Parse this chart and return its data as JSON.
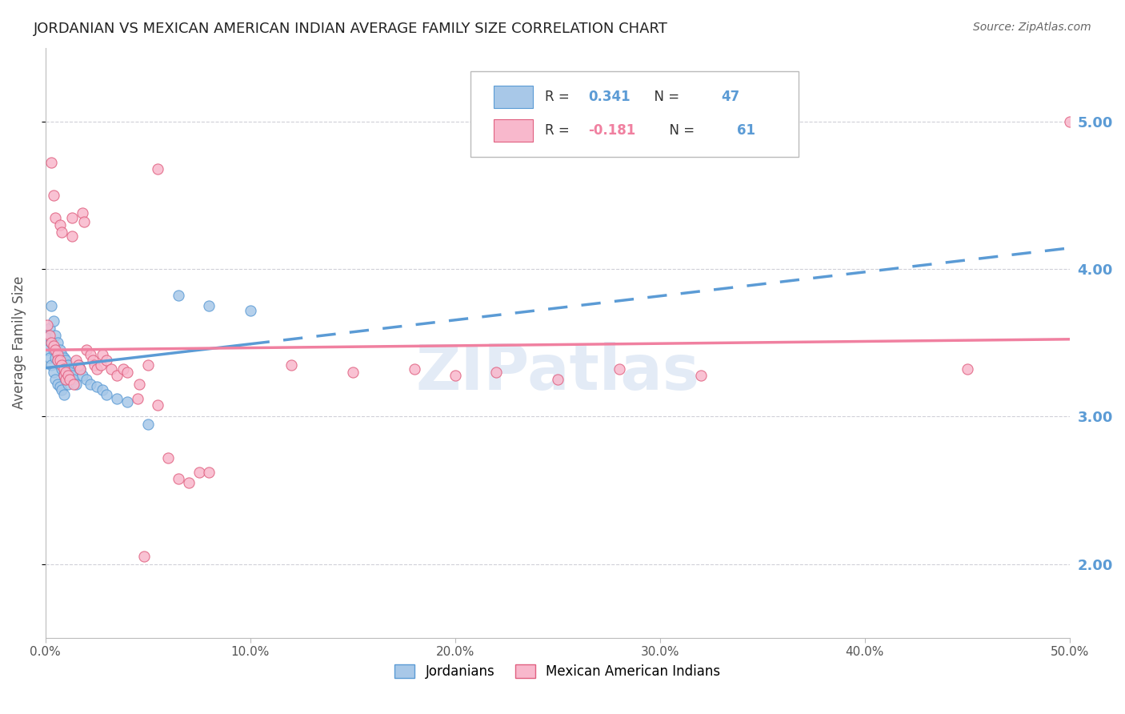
{
  "title": "JORDANIAN VS MEXICAN AMERICAN INDIAN AVERAGE FAMILY SIZE CORRELATION CHART",
  "source": "Source: ZipAtlas.com",
  "ylabel": "Average Family Size",
  "right_yticks": [
    2.0,
    3.0,
    4.0,
    5.0
  ],
  "watermark": "ZIPatlas",
  "R_blue": 0.341,
  "N_blue": 47,
  "R_pink": -0.181,
  "N_pink": 61,
  "legend_label_1": "Jordanians",
  "legend_label_2": "Mexican American Indians",
  "blue_points": [
    [
      0.001,
      3.55
    ],
    [
      0.001,
      3.45
    ],
    [
      0.002,
      3.6
    ],
    [
      0.002,
      3.4
    ],
    [
      0.003,
      3.75
    ],
    [
      0.003,
      3.5
    ],
    [
      0.003,
      3.35
    ],
    [
      0.004,
      3.65
    ],
    [
      0.004,
      3.45
    ],
    [
      0.004,
      3.3
    ],
    [
      0.005,
      3.55
    ],
    [
      0.005,
      3.4
    ],
    [
      0.005,
      3.25
    ],
    [
      0.006,
      3.5
    ],
    [
      0.006,
      3.38
    ],
    [
      0.006,
      3.22
    ],
    [
      0.007,
      3.45
    ],
    [
      0.007,
      3.35
    ],
    [
      0.007,
      3.2
    ],
    [
      0.008,
      3.42
    ],
    [
      0.008,
      3.32
    ],
    [
      0.008,
      3.18
    ],
    [
      0.009,
      3.4
    ],
    [
      0.009,
      3.28
    ],
    [
      0.009,
      3.15
    ],
    [
      0.01,
      3.38
    ],
    [
      0.01,
      3.25
    ],
    [
      0.011,
      3.35
    ],
    [
      0.011,
      3.22
    ],
    [
      0.012,
      3.3
    ],
    [
      0.013,
      3.28
    ],
    [
      0.014,
      3.25
    ],
    [
      0.015,
      3.22
    ],
    [
      0.016,
      3.35
    ],
    [
      0.017,
      3.32
    ],
    [
      0.018,
      3.28
    ],
    [
      0.02,
      3.25
    ],
    [
      0.022,
      3.22
    ],
    [
      0.025,
      3.2
    ],
    [
      0.028,
      3.18
    ],
    [
      0.03,
      3.15
    ],
    [
      0.035,
      3.12
    ],
    [
      0.04,
      3.1
    ],
    [
      0.05,
      2.95
    ],
    [
      0.065,
      3.82
    ],
    [
      0.08,
      3.75
    ],
    [
      0.1,
      3.72
    ]
  ],
  "pink_points": [
    [
      0.001,
      3.62
    ],
    [
      0.002,
      3.55
    ],
    [
      0.003,
      3.5
    ],
    [
      0.003,
      4.72
    ],
    [
      0.004,
      3.48
    ],
    [
      0.004,
      4.5
    ],
    [
      0.005,
      3.45
    ],
    [
      0.005,
      4.35
    ],
    [
      0.006,
      3.42
    ],
    [
      0.006,
      3.38
    ],
    [
      0.007,
      3.38
    ],
    [
      0.007,
      4.3
    ],
    [
      0.008,
      3.35
    ],
    [
      0.008,
      4.25
    ],
    [
      0.009,
      3.32
    ],
    [
      0.009,
      3.28
    ],
    [
      0.01,
      3.3
    ],
    [
      0.01,
      3.25
    ],
    [
      0.011,
      3.28
    ],
    [
      0.012,
      3.25
    ],
    [
      0.013,
      4.35
    ],
    [
      0.013,
      4.22
    ],
    [
      0.014,
      3.22
    ],
    [
      0.015,
      3.38
    ],
    [
      0.016,
      3.35
    ],
    [
      0.017,
      3.32
    ],
    [
      0.018,
      4.38
    ],
    [
      0.019,
      4.32
    ],
    [
      0.02,
      3.45
    ],
    [
      0.022,
      3.42
    ],
    [
      0.023,
      3.38
    ],
    [
      0.024,
      3.35
    ],
    [
      0.025,
      3.32
    ],
    [
      0.027,
      3.35
    ],
    [
      0.028,
      3.42
    ],
    [
      0.03,
      3.38
    ],
    [
      0.032,
      3.32
    ],
    [
      0.035,
      3.28
    ],
    [
      0.038,
      3.32
    ],
    [
      0.04,
      3.3
    ],
    [
      0.045,
      3.12
    ],
    [
      0.046,
      3.22
    ],
    [
      0.05,
      3.35
    ],
    [
      0.055,
      3.08
    ],
    [
      0.055,
      4.68
    ],
    [
      0.06,
      2.72
    ],
    [
      0.065,
      2.58
    ],
    [
      0.07,
      2.55
    ],
    [
      0.075,
      2.62
    ],
    [
      0.08,
      2.62
    ],
    [
      0.12,
      3.35
    ],
    [
      0.15,
      3.3
    ],
    [
      0.18,
      3.32
    ],
    [
      0.2,
      3.28
    ],
    [
      0.22,
      3.3
    ],
    [
      0.25,
      3.25
    ],
    [
      0.28,
      3.32
    ],
    [
      0.32,
      3.28
    ],
    [
      0.45,
      3.32
    ],
    [
      0.5,
      5.0
    ],
    [
      0.048,
      2.05
    ]
  ],
  "blue_line_color": "#5b9bd5",
  "pink_line_color": "#f080a0",
  "blue_scatter_color": "#a8c8e8",
  "pink_scatter_color": "#f8b8cc",
  "blue_scatter_edge": "#5b9bd5",
  "pink_scatter_edge": "#e06080",
  "background_color": "#ffffff",
  "grid_color": "#d0d0d8",
  "title_color": "#222222",
  "source_color": "#666666",
  "right_axis_color": "#5b9bd5",
  "xlim": [
    0.0,
    0.5
  ],
  "ylim": [
    1.5,
    5.5
  ]
}
